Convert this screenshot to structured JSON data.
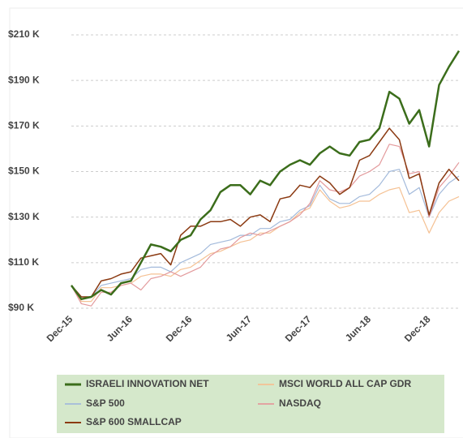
{
  "chart_data": {
    "type": "line",
    "categories": [
      "Dec-15",
      null,
      null,
      null,
      null,
      null,
      "Jun-16",
      null,
      null,
      null,
      null,
      null,
      "Dec-16",
      null,
      null,
      null,
      null,
      null,
      "Jun-17",
      null,
      null,
      null,
      null,
      null,
      "Dec-17",
      null,
      null,
      null,
      null,
      null,
      "Jun-18",
      null,
      null,
      null,
      null,
      null,
      "Dec-18",
      null,
      null,
      null
    ],
    "series": [
      {
        "name": "ISRAELI INNOVATION NET",
        "color": "#3b6d1b",
        "width": 2.5,
        "values": [
          100,
          94,
          95,
          98,
          96,
          101,
          102,
          110,
          118,
          117,
          115,
          120,
          122,
          129,
          133,
          141,
          144,
          144,
          140,
          146,
          144,
          150,
          153,
          155,
          153,
          158,
          161,
          158,
          157,
          163,
          164,
          169,
          185,
          182,
          171,
          177,
          161,
          188,
          196,
          203
        ]
      },
      {
        "name": "MSCI WORLD ALL CAP GDR",
        "color": "#f5c193",
        "width": 1.2,
        "values": [
          100,
          93,
          93,
          99,
          99,
          100,
          101,
          104,
          105,
          105,
          104,
          107,
          108,
          111,
          114,
          115,
          117,
          119,
          120,
          123,
          123,
          126,
          128,
          132,
          134,
          142,
          137,
          134,
          135,
          137,
          137,
          140,
          142,
          143,
          132,
          133,
          123,
          132,
          137,
          139
        ]
      },
      {
        "name": "S&P 500",
        "color": "#a3badb",
        "width": 1.2,
        "values": [
          100,
          95,
          95,
          100,
          101,
          102,
          103,
          107,
          108,
          108,
          106,
          110,
          112,
          114,
          118,
          119,
          120,
          122,
          122,
          125,
          125,
          128,
          129,
          133,
          135,
          144,
          138,
          136,
          136,
          139,
          140,
          144,
          150,
          151,
          140,
          143,
          130,
          140,
          145,
          148
        ]
      },
      {
        "name": "NASDAQ",
        "color": "#e39a9c",
        "width": 1.2,
        "values": [
          100,
          92,
          91,
          97,
          97,
          100,
          101,
          98,
          103,
          104,
          106,
          104,
          106,
          108,
          113,
          116,
          117,
          121,
          123,
          122,
          124,
          126,
          128,
          131,
          136,
          146,
          142,
          141,
          143,
          148,
          150,
          153,
          162,
          161,
          149,
          150,
          130,
          143,
          148,
          154
        ]
      },
      {
        "name": "S&P 600 SMALLCAP",
        "color": "#8b3a12",
        "width": 1.5,
        "values": [
          100,
          95,
          95,
          102,
          103,
          105,
          106,
          112,
          113,
          114,
          109,
          122,
          126,
          126,
          128,
          128,
          129,
          126,
          130,
          131,
          128,
          138,
          139,
          144,
          143,
          148,
          145,
          140,
          143,
          155,
          157,
          163,
          169,
          164,
          147,
          149,
          131,
          145,
          151,
          146
        ]
      }
    ],
    "ylim": [
      90,
      210
    ],
    "yticks": [
      {
        "value": 90,
        "label": "$90 K"
      },
      {
        "value": 110,
        "label": "$110 K"
      },
      {
        "value": 130,
        "label": "$130 K"
      },
      {
        "value": 150,
        "label": "$150 K"
      },
      {
        "value": 170,
        "label": "$170 K"
      },
      {
        "value": 190,
        "label": "$190 K"
      },
      {
        "value": 210,
        "label": "$210 K"
      }
    ],
    "grid": true
  }
}
